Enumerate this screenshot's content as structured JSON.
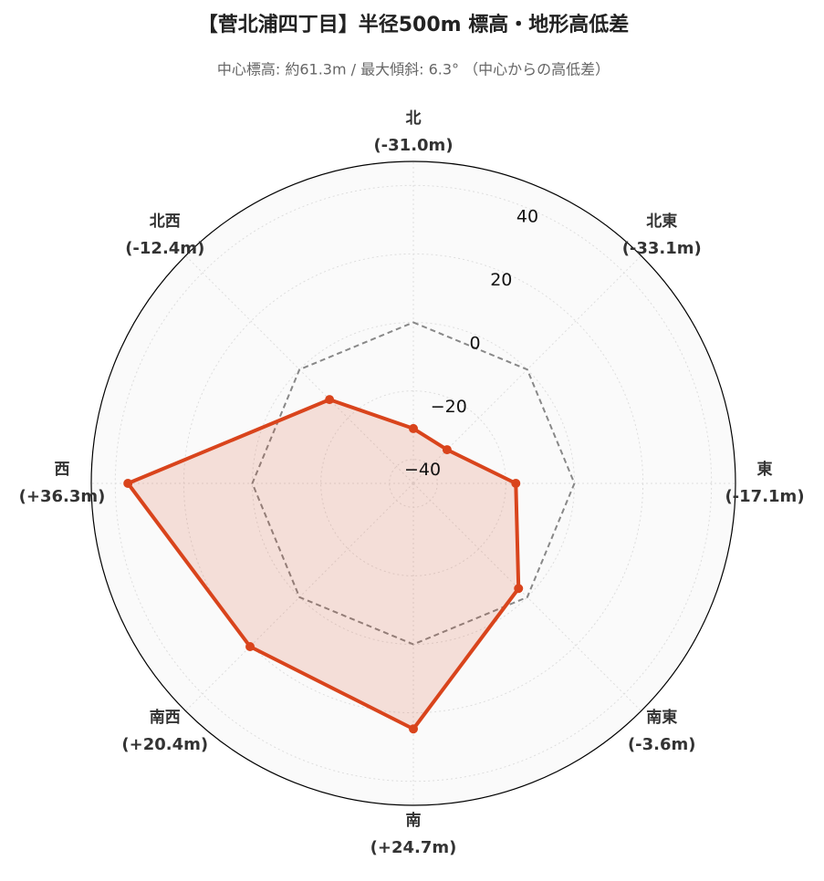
{
  "chart_data": {
    "type": "radar",
    "title": "【菅北浦四丁目】半径500m 標高・地形高低差",
    "subtitle": "中心標高: 約61.3m / 最大傾斜: 6.3° （中心からの高低差）",
    "categories": [
      "北",
      "北東",
      "東",
      "南東",
      "南",
      "南西",
      "西",
      "北西"
    ],
    "series": [
      {
        "name": "高低差",
        "color": "#d9441c",
        "values": [
          -31.0,
          -33.1,
          -17.1,
          -3.6,
          24.7,
          20.4,
          36.3,
          -12.4
        ],
        "value_labels": [
          "(-31.0m)",
          "(-33.1m)",
          "(-17.1m)",
          "(-3.6m)",
          "(+24.7m)",
          "(+20.4m)",
          "(+36.3m)",
          "(-12.4m)"
        ]
      }
    ],
    "ylim": [
      -47,
      47
    ],
    "yticks": [
      {
        "value": -40,
        "label": "−40"
      },
      {
        "value": -20,
        "label": "−20"
      },
      0,
      20,
      40
    ],
    "reference": 0,
    "grid": true
  }
}
